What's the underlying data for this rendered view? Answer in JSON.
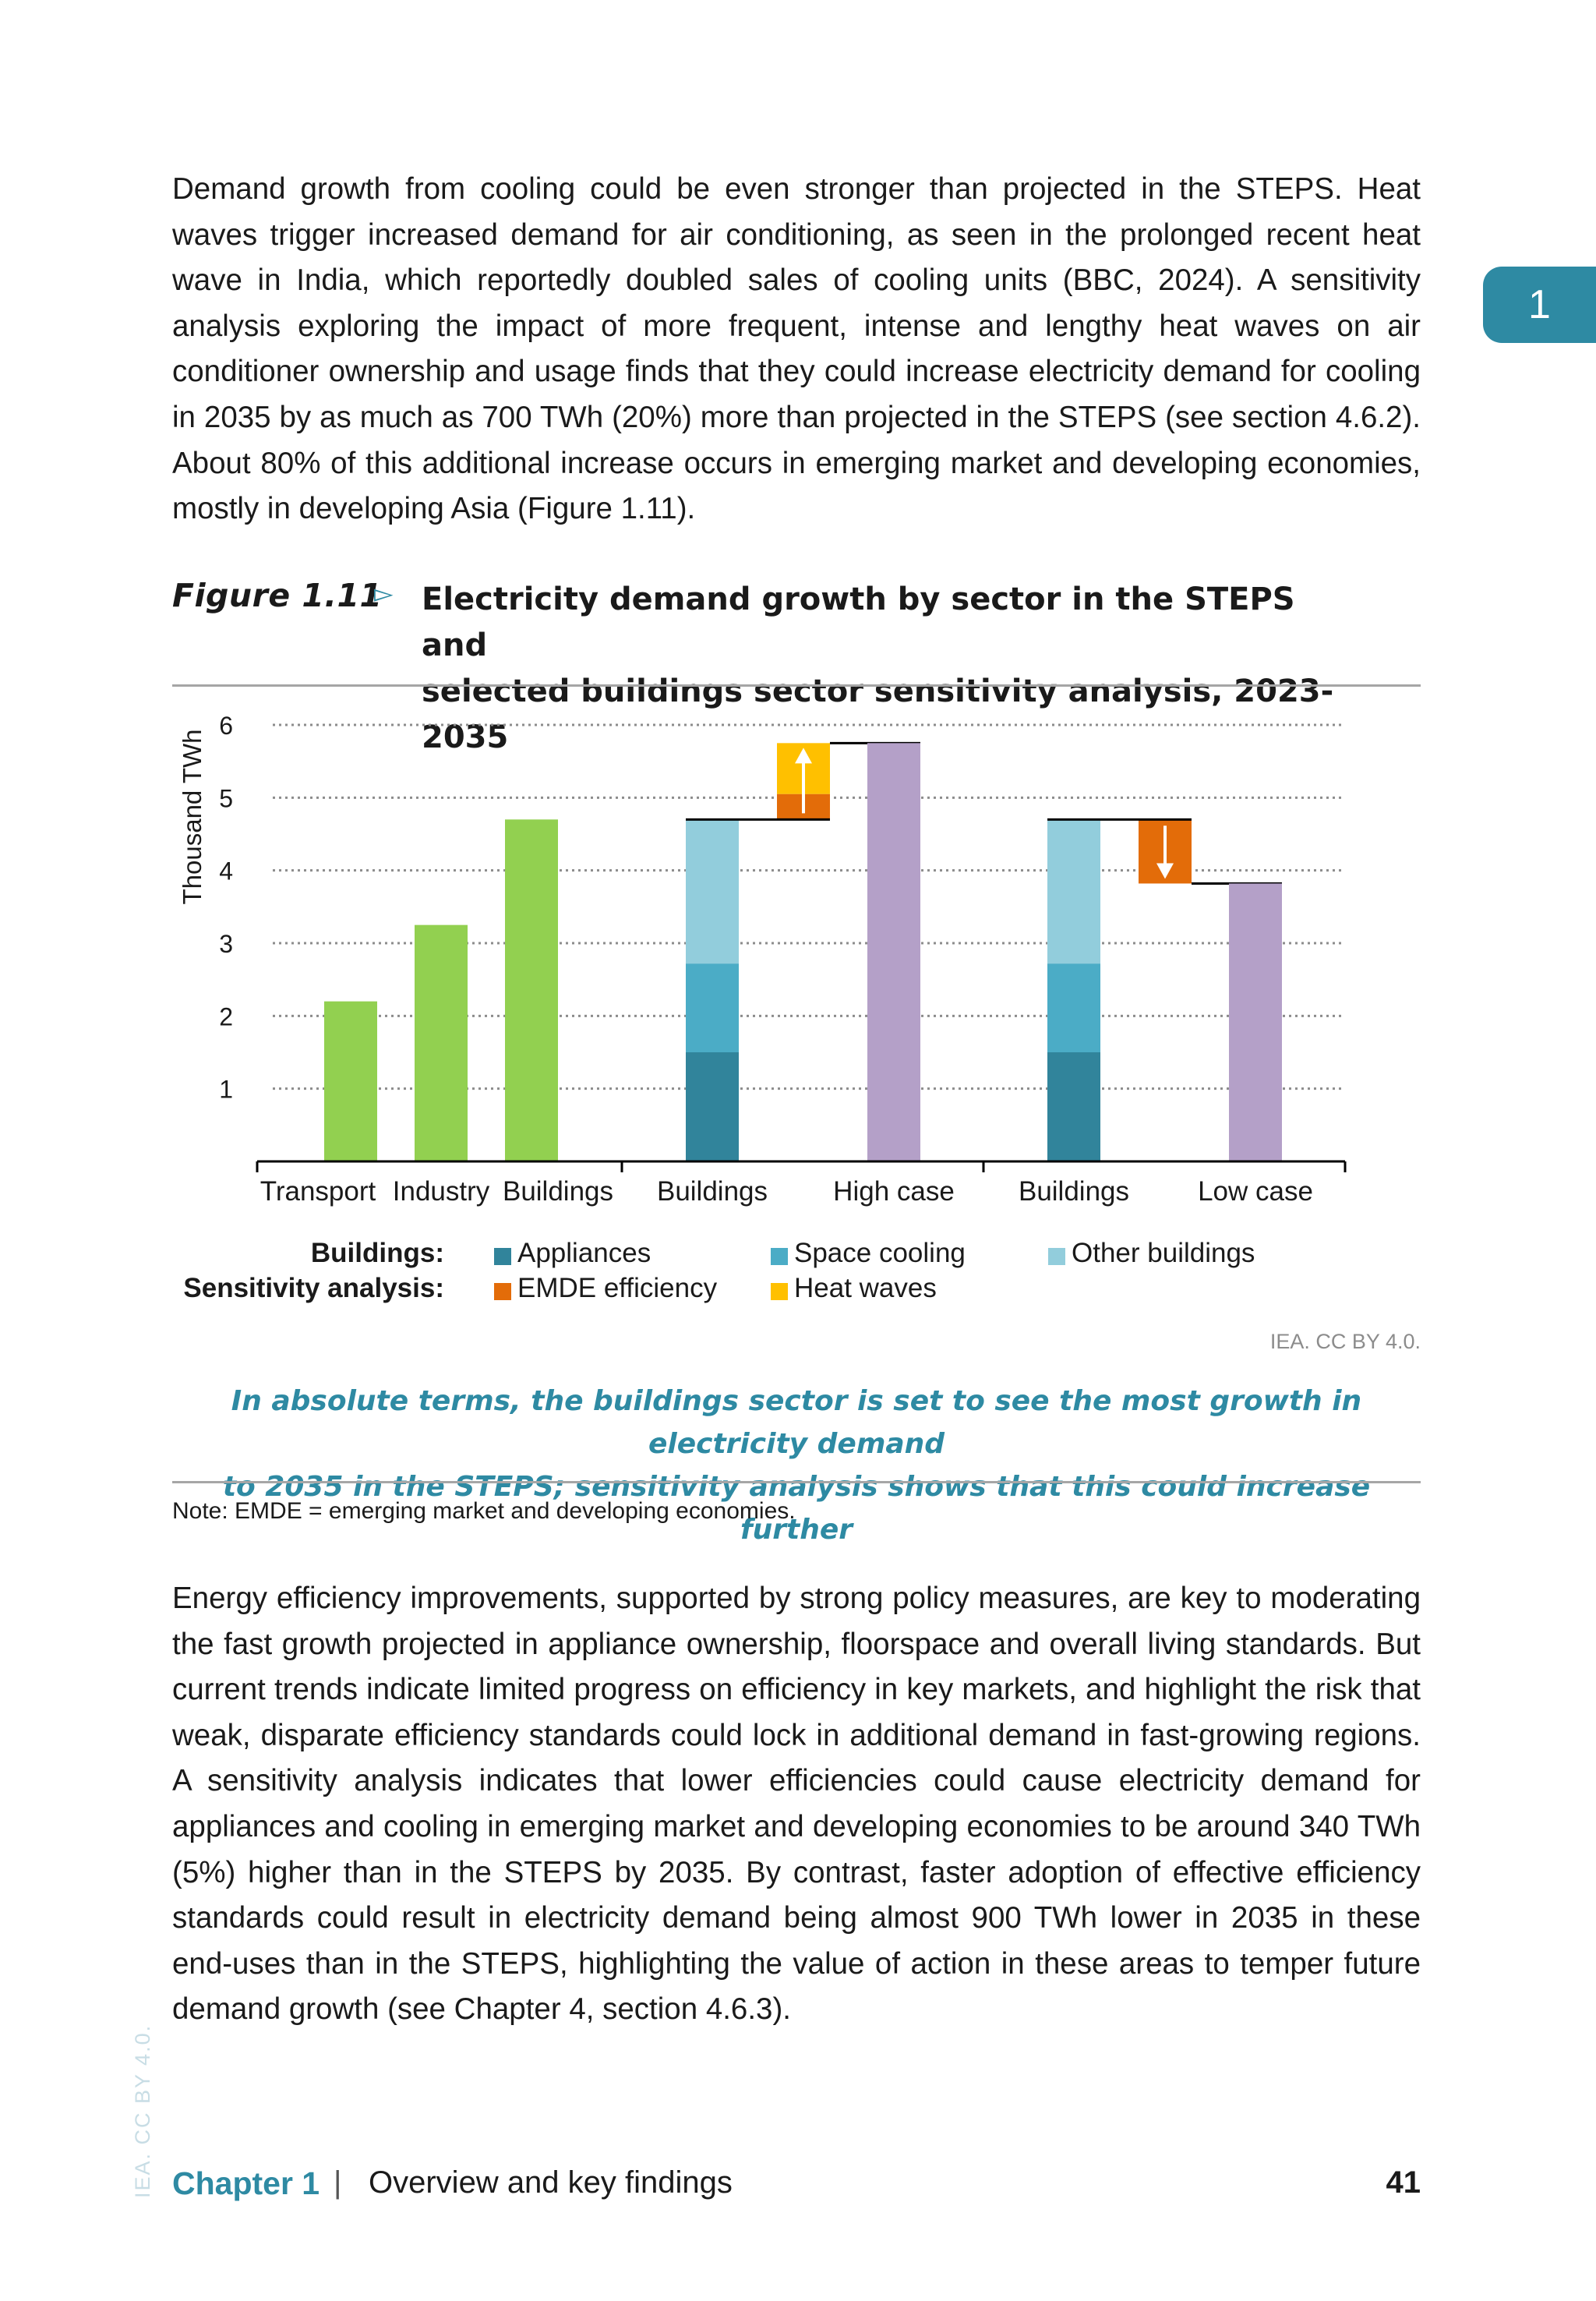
{
  "chapter_tab": "1",
  "para1": "Demand growth from cooling could be even stronger than projected in the STEPS. Heat waves trigger increased demand for air conditioning, as seen in the prolonged recent heat wave in India, which reportedly doubled sales of cooling units (BBC, 2024). A sensitivity analysis exploring the impact of more frequent, intense and lengthy heat waves on air conditioner ownership and usage finds that they could increase electricity demand for cooling in 2035 by as much as 700 TWh (20%) more than projected in the STEPS (see section 4.6.2). About 80% of this additional increase occurs in emerging market and developing economies, mostly in developing Asia (Figure 1.11).",
  "figure": {
    "label": "Figure 1.11",
    "arrow": "▻",
    "title_line1": "Electricity demand growth by sector in the STEPS and",
    "title_line2": "selected buildings sector sensitivity analysis, 2023-2035"
  },
  "chart_data": {
    "type": "bar",
    "ylabel": "Thousand TWh",
    "ylim": [
      0,
      6
    ],
    "yticks": [
      1,
      2,
      3,
      4,
      5,
      6
    ],
    "grid": true,
    "categories": [
      "Transport",
      "Industry",
      "Buildings",
      "Buildings",
      "High case",
      "Buildings",
      "Low case"
    ],
    "simple_bars": [
      {
        "category": "Transport",
        "value": 2.2,
        "color": "#92d050"
      },
      {
        "category": "Industry",
        "value": 3.25,
        "color": "#92d050"
      },
      {
        "category": "Buildings",
        "value": 4.7,
        "color": "#92d050"
      }
    ],
    "stacked_bars": [
      {
        "category": "Buildings",
        "segments": {
          "Appliances": 1.5,
          "Space cooling": 1.22,
          "Other buildings": 1.98
        }
      },
      {
        "category": "Buildings",
        "segments": {
          "Appliances": 1.5,
          "Space cooling": 1.22,
          "Other buildings": 1.98
        }
      }
    ],
    "waterfall": [
      {
        "name": "EMDE efficiency",
        "from": 4.7,
        "to": 5.05,
        "direction": "up"
      },
      {
        "name": "Heat waves",
        "from": 5.05,
        "to": 5.75,
        "direction": "up"
      },
      {
        "name": "EMDE efficiency",
        "from": 4.7,
        "to": 3.82,
        "direction": "down"
      }
    ],
    "totals": [
      {
        "category": "High case",
        "value": 5.75,
        "color": "#b4a0c8"
      },
      {
        "category": "Low case",
        "value": 3.82,
        "color": "#b4a0c8"
      }
    ],
    "legend": {
      "group1_head": "Buildings:",
      "group2_head": "Sensitivity analysis:",
      "items": [
        {
          "name": "Appliances",
          "color": "#31849b"
        },
        {
          "name": "Space cooling",
          "color": "#4bacc6"
        },
        {
          "name": "Other buildings",
          "color": "#92cddc"
        },
        {
          "name": "EMDE efficiency",
          "color": "#e36c09"
        },
        {
          "name": "Heat waves",
          "color": "#ffc000"
        }
      ]
    }
  },
  "credit": "IEA. CC BY 4.0.",
  "caption_line1": "In absolute terms, the buildings sector is set to see the most growth in electricity demand",
  "caption_line2": "to 2035 in the STEPS; sensitivity analysis shows that this could increase further",
  "note": "Note: EMDE = emerging market and developing economies.",
  "para2": "Energy efficiency improvements, supported by strong policy measures, are key to moderating the fast growth projected in appliance ownership, floorspace and overall living standards. But current trends indicate limited progress on efficiency in key markets, and highlight the risk that weak, disparate efficiency standards could lock in additional demand in fast-growing regions. A sensitivity analysis indicates that lower efficiencies could cause electricity demand for appliances and cooling in emerging market and developing economies to be around 340 TWh (5%) higher than in the STEPS by 2035. By contrast, faster adoption of effective efficiency standards could result in electricity demand being almost 900 TWh lower in 2035 in these end-uses than in the STEPS, highlighting the value of action in these areas to temper future demand growth (see Chapter 4, section 4.6.3).",
  "side_credit": "IEA. CC BY 4.0.",
  "footer": {
    "chapter": "Chapter 1",
    "separator": "|",
    "title": "Overview and key findings",
    "page": "41"
  }
}
